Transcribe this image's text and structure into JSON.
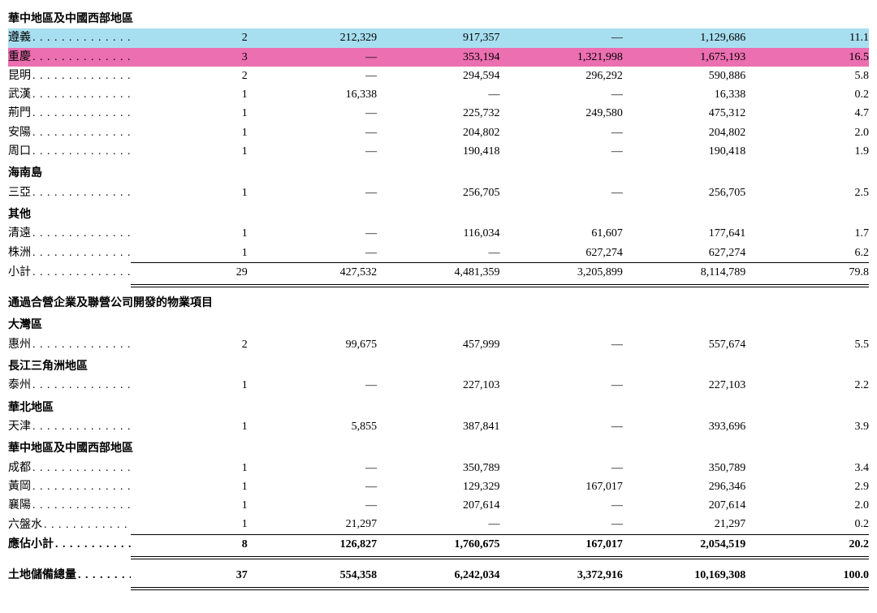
{
  "colors": {
    "highlight_blue": "#a8dff0",
    "highlight_pink": "#ec6fb1",
    "text": "#000000",
    "background": "#ffffff",
    "border": "#000000"
  },
  "typography": {
    "base_fontsize_pt": 14,
    "family": "SimSun/Songti serif"
  },
  "columns": [
    "label",
    "count",
    "val1",
    "val2",
    "val3",
    "val4",
    "val5"
  ],
  "dash": "—",
  "sections": {
    "s1": {
      "title": "華中地區及中國西部地區",
      "rows": [
        {
          "highlight": "blue",
          "label": "遵義",
          "count": "2",
          "v1": "212,329",
          "v2": "917,357",
          "v3": "—",
          "v4": "1,129,686",
          "v5": "11.1"
        },
        {
          "highlight": "pink",
          "label": "重慶",
          "count": "3",
          "v1": "—",
          "v2": "353,194",
          "v3": "1,321,998",
          "v4": "1,675,193",
          "v5": "16.5"
        },
        {
          "label": "昆明",
          "count": "2",
          "v1": "—",
          "v2": "294,594",
          "v3": "296,292",
          "v4": "590,886",
          "v5": "5.8"
        },
        {
          "label": "武漢",
          "count": "1",
          "v1": "16,338",
          "v2": "—",
          "v3": "—",
          "v4": "16,338",
          "v5": "0.2"
        },
        {
          "label": "荊門",
          "count": "1",
          "v1": "—",
          "v2": "225,732",
          "v3": "249,580",
          "v4": "475,312",
          "v5": "4.7"
        },
        {
          "label": "安陽",
          "count": "1",
          "v1": "—",
          "v2": "204,802",
          "v3": "—",
          "v4": "204,802",
          "v5": "2.0"
        },
        {
          "label": "周口",
          "count": "1",
          "v1": "—",
          "v2": "190,418",
          "v3": "—",
          "v4": "190,418",
          "v5": "1.9"
        }
      ]
    },
    "s2": {
      "title": "海南島",
      "rows": [
        {
          "label": "三亞",
          "count": "1",
          "v1": "—",
          "v2": "256,705",
          "v3": "—",
          "v4": "256,705",
          "v5": "2.5"
        }
      ]
    },
    "s3": {
      "title": "其他",
      "rows": [
        {
          "label": "清遠",
          "count": "1",
          "v1": "—",
          "v2": "116,034",
          "v3": "61,607",
          "v4": "177,641",
          "v5": "1.7"
        },
        {
          "label": "株洲",
          "count": "1",
          "v1": "—",
          "v2": "—",
          "v3": "627,274",
          "v4": "627,274",
          "v5": "6.2"
        }
      ]
    },
    "subtotal1": {
      "label": "小計",
      "count": "29",
      "v1": "427,532",
      "v2": "4,481,359",
      "v3": "3,205,899",
      "v4": "8,114,789",
      "v5": "79.8"
    },
    "s4title": "通過合營企業及聯營公司開發的物業項目",
    "s5": {
      "title": "大灣區",
      "rows": [
        {
          "label": "惠州",
          "count": "2",
          "v1": "99,675",
          "v2": "457,999",
          "v3": "—",
          "v4": "557,674",
          "v5": "5.5"
        }
      ]
    },
    "s6": {
      "title": "長江三角洲地區",
      "rows": [
        {
          "label": "泰州",
          "count": "1",
          "v1": "—",
          "v2": "227,103",
          "v3": "—",
          "v4": "227,103",
          "v5": "2.2"
        }
      ]
    },
    "s7": {
      "title": "華北地區",
      "rows": [
        {
          "label": "天津",
          "count": "1",
          "v1": "5,855",
          "v2": "387,841",
          "v3": "—",
          "v4": "393,696",
          "v5": "3.9"
        }
      ]
    },
    "s8": {
      "title": "華中地區及中國西部地區",
      "rows": [
        {
          "label": "成都",
          "count": "1",
          "v1": "—",
          "v2": "350,789",
          "v3": "—",
          "v4": "350,789",
          "v5": "3.4"
        },
        {
          "label": "黃岡",
          "count": "1",
          "v1": "—",
          "v2": "129,329",
          "v3": "167,017",
          "v4": "296,346",
          "v5": "2.9"
        },
        {
          "label": "襄陽",
          "count": "1",
          "v1": "—",
          "v2": "207,614",
          "v3": "—",
          "v4": "207,614",
          "v5": "2.0"
        },
        {
          "label": "六盤水",
          "count": "1",
          "v1": "21,297",
          "v2": "—",
          "v3": "—",
          "v4": "21,297",
          "v5": "0.2"
        }
      ]
    },
    "subtotal2": {
      "label": "應佔小計",
      "count": "8",
      "v1": "126,827",
      "v2": "1,760,675",
      "v3": "167,017",
      "v4": "2,054,519",
      "v5": "20.2"
    },
    "grandtotal": {
      "label": "土地儲備總量",
      "count": "37",
      "v1": "554,358",
      "v2": "6,242,034",
      "v3": "3,372,916",
      "v4": "10,169,308",
      "v5": "100.0"
    }
  }
}
